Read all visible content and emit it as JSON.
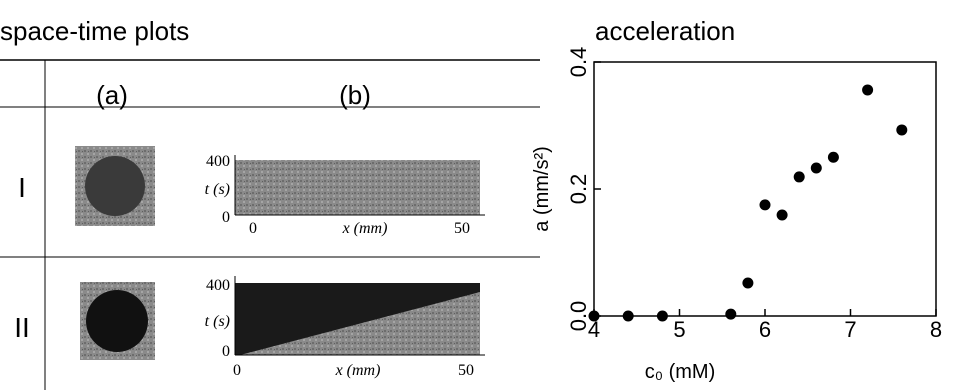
{
  "left_panel": {
    "title": "space-time plots",
    "columns": [
      "(a)",
      "(b)"
    ],
    "rows": [
      "I",
      "II"
    ],
    "inset": {
      "y_label": "t (s)",
      "x_label": "x (mm)",
      "y_top": "400",
      "y_bottom": "0",
      "x_left": "0",
      "x_right": "50"
    }
  },
  "chart_data": {
    "type": "scatter",
    "title": "acceleration",
    "x_label": "c₀ (mM)",
    "y_label": "a (mm/s²)",
    "x": [
      4.0,
      4.4,
      4.8,
      5.6,
      5.8,
      6.0,
      6.2,
      6.4,
      6.6,
      6.8,
      7.2,
      7.6
    ],
    "series": [
      {
        "color": "#000000",
        "values": [
          0.0,
          0.0,
          0.0,
          0.003,
          0.052,
          0.175,
          0.159,
          0.219,
          0.233,
          0.25,
          0.356,
          0.293
        ]
      }
    ],
    "xlim": [
      4,
      8
    ],
    "xticks": [
      4,
      5,
      6,
      7,
      8
    ],
    "ylim": [
      0,
      0.4
    ],
    "yticks": [
      {
        "value": 0,
        "label": "0.0"
      },
      0.2,
      0.4
    ]
  }
}
